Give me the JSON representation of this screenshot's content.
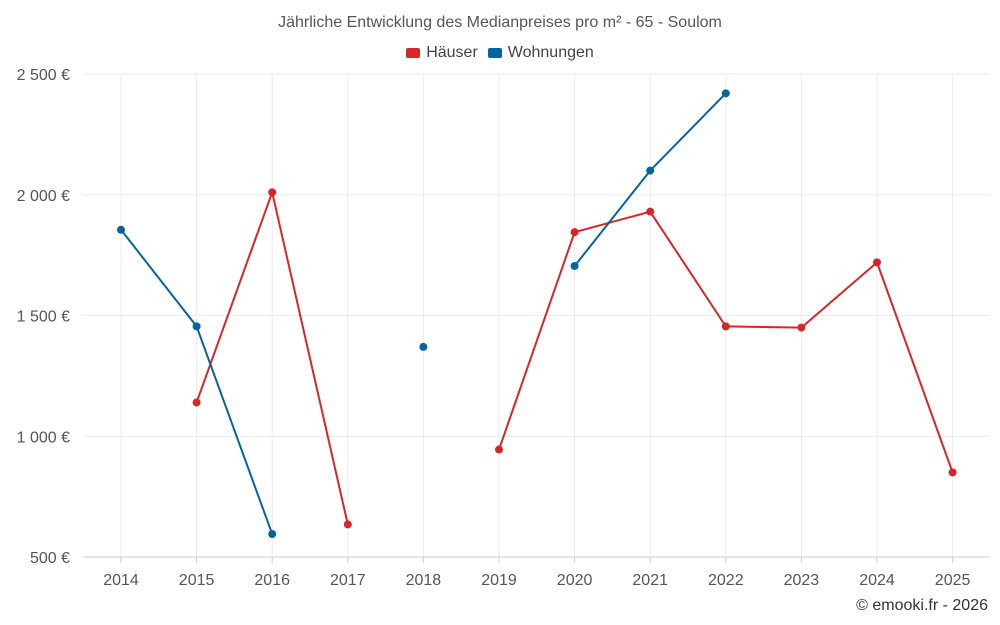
{
  "chart_data": {
    "type": "line",
    "title": "Jährliche Entwicklung des Medianpreises pro m² - 65 - Soulom",
    "categories": [
      "2014",
      "2015",
      "2016",
      "2017",
      "2018",
      "2019",
      "2020",
      "2021",
      "2022",
      "2023",
      "2024",
      "2025"
    ],
    "y_ticks": [
      500,
      1000,
      1500,
      2000,
      2500
    ],
    "y_tick_labels": [
      "500 €",
      "1 000 €",
      "1 500 €",
      "2 000 €",
      "2 500 €"
    ],
    "ylim": [
      500,
      2500
    ],
    "grid": true,
    "legend_position": "top-center",
    "series": [
      {
        "name": "Häuser",
        "color": "#d62728",
        "values": [
          null,
          1140,
          2010,
          635,
          null,
          945,
          1845,
          1930,
          1455,
          1450,
          1720,
          850
        ]
      },
      {
        "name": "Wohnungen",
        "color": "#05649e",
        "values": [
          1855,
          1455,
          595,
          null,
          1370,
          null,
          1705,
          2100,
          2420,
          null,
          null,
          null
        ]
      }
    ],
    "xlabel": "",
    "ylabel": ""
  },
  "credit": "© emooki.fr - 2026"
}
